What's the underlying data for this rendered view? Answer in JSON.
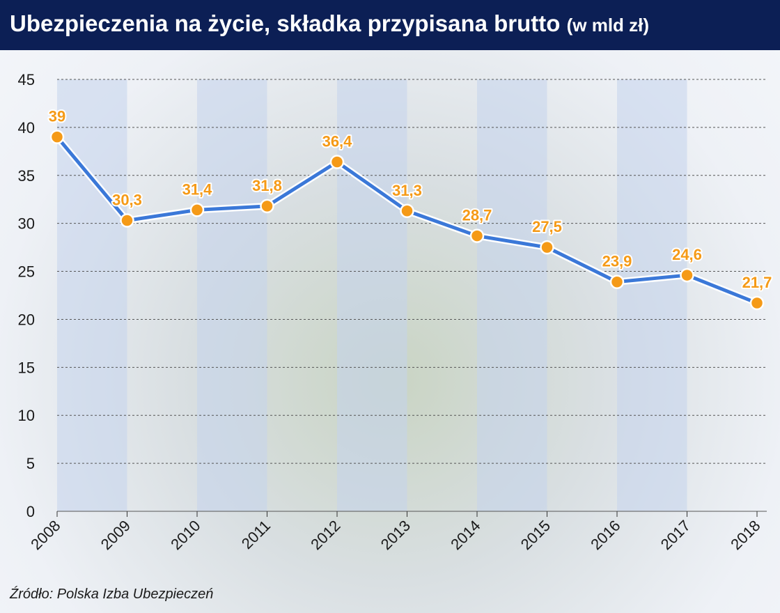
{
  "header": {
    "title": "Ubezpieczenia na życie, składka przypisana brutto",
    "unit": "(w mld zł)"
  },
  "footer": {
    "source": "Źródło: Polska Izba Ubezpieczeń"
  },
  "colors": {
    "title_bar": "#0c1f55",
    "line": "#3b78d8",
    "marker": "#f59a17",
    "label": "#f59a17",
    "grid": "#555555",
    "column_band": "#c4d3ec"
  },
  "chart_data": {
    "type": "line",
    "title": "Ubezpieczenia na życie, składka przypisana brutto (w mld zł)",
    "xlabel": "",
    "ylabel": "",
    "categories": [
      "2008",
      "2009",
      "2010",
      "2011",
      "2012",
      "2013",
      "2014",
      "2015",
      "2016",
      "2017",
      "2018"
    ],
    "values": [
      39,
      30.3,
      31.4,
      31.8,
      36.4,
      31.3,
      28.7,
      27.5,
      23.9,
      24.6,
      21.7
    ],
    "value_labels": [
      "39",
      "30,3",
      "31,4",
      "31,8",
      "36,4",
      "31,3",
      "28,7",
      "27,5",
      "23,9",
      "24,6",
      "21,7"
    ],
    "ylim": [
      0,
      45
    ],
    "yticks": [
      "0",
      "5",
      "10",
      "15",
      "20",
      "25",
      "30",
      "35",
      "40",
      "45"
    ],
    "grid": "horizontal dashed",
    "legend": "none"
  }
}
